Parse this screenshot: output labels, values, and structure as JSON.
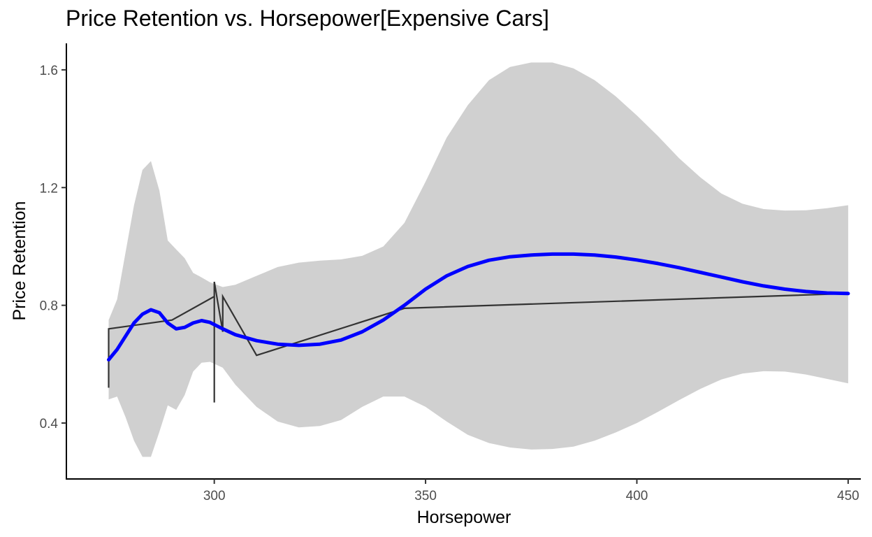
{
  "chart_data": {
    "type": "line",
    "title": "Price Retention vs. Horsepower[Expensive Cars]",
    "xlabel": "Horsepower",
    "ylabel": "Price Retention",
    "xlim": [
      265,
      453
    ],
    "ylim": [
      0.21,
      1.69
    ],
    "xticks": [
      300,
      350,
      400,
      450
    ],
    "yticks": [
      0.4,
      0.8,
      1.2,
      1.6
    ],
    "ytick_labels": [
      "0.4",
      "0.8",
      "1.2",
      "1.6"
    ],
    "grid": false,
    "legend": "none",
    "series": [
      {
        "kind": "raw-line",
        "color": "#333333",
        "points": [
          [
            275,
            0.52
          ],
          [
            275,
            0.72
          ],
          [
            290,
            0.75
          ],
          [
            300,
            0.83
          ],
          [
            300,
            0.47
          ],
          [
            300,
            0.88
          ],
          [
            302,
            0.71
          ],
          [
            302,
            0.83
          ],
          [
            310,
            0.63
          ],
          [
            345,
            0.79
          ],
          [
            450,
            0.84
          ]
        ]
      },
      {
        "kind": "smooth",
        "color": "#0000ff",
        "points": [
          [
            275,
            0.615
          ],
          [
            277,
            0.65
          ],
          [
            279,
            0.695
          ],
          [
            281,
            0.74
          ],
          [
            283,
            0.77
          ],
          [
            285,
            0.785
          ],
          [
            287,
            0.775
          ],
          [
            289,
            0.74
          ],
          [
            291,
            0.72
          ],
          [
            293,
            0.725
          ],
          [
            295,
            0.74
          ],
          [
            297,
            0.748
          ],
          [
            299,
            0.742
          ],
          [
            302,
            0.72
          ],
          [
            305,
            0.7
          ],
          [
            310,
            0.68
          ],
          [
            315,
            0.668
          ],
          [
            320,
            0.664
          ],
          [
            325,
            0.668
          ],
          [
            330,
            0.682
          ],
          [
            335,
            0.71
          ],
          [
            340,
            0.75
          ],
          [
            345,
            0.8
          ],
          [
            350,
            0.855
          ],
          [
            355,
            0.9
          ],
          [
            360,
            0.932
          ],
          [
            365,
            0.953
          ],
          [
            370,
            0.965
          ],
          [
            375,
            0.971
          ],
          [
            380,
            0.974
          ],
          [
            385,
            0.974
          ],
          [
            390,
            0.971
          ],
          [
            395,
            0.964
          ],
          [
            400,
            0.954
          ],
          [
            405,
            0.942
          ],
          [
            410,
            0.928
          ],
          [
            415,
            0.912
          ],
          [
            420,
            0.896
          ],
          [
            425,
            0.88
          ],
          [
            430,
            0.866
          ],
          [
            435,
            0.855
          ],
          [
            440,
            0.847
          ],
          [
            445,
            0.842
          ],
          [
            450,
            0.84
          ]
        ]
      },
      {
        "kind": "confidence-band",
        "color": "#d0d0d0",
        "upper": [
          [
            275,
            0.75
          ],
          [
            277,
            0.82
          ],
          [
            279,
            0.98
          ],
          [
            281,
            1.14
          ],
          [
            283,
            1.26
          ],
          [
            285,
            1.29
          ],
          [
            287,
            1.19
          ],
          [
            289,
            1.02
          ],
          [
            291,
            0.99
          ],
          [
            293,
            0.96
          ],
          [
            295,
            0.91
          ],
          [
            297,
            0.895
          ],
          [
            299,
            0.878
          ],
          [
            302,
            0.862
          ],
          [
            305,
            0.87
          ],
          [
            310,
            0.9
          ],
          [
            315,
            0.93
          ],
          [
            320,
            0.945
          ],
          [
            325,
            0.952
          ],
          [
            330,
            0.956
          ],
          [
            335,
            0.968
          ],
          [
            340,
            1.0
          ],
          [
            345,
            1.08
          ],
          [
            350,
            1.22
          ],
          [
            355,
            1.37
          ],
          [
            360,
            1.48
          ],
          [
            365,
            1.565
          ],
          [
            370,
            1.61
          ],
          [
            375,
            1.625
          ],
          [
            380,
            1.625
          ],
          [
            385,
            1.605
          ],
          [
            390,
            1.565
          ],
          [
            395,
            1.51
          ],
          [
            400,
            1.445
          ],
          [
            405,
            1.375
          ],
          [
            410,
            1.3
          ],
          [
            415,
            1.235
          ],
          [
            420,
            1.18
          ],
          [
            425,
            1.145
          ],
          [
            430,
            1.127
          ],
          [
            435,
            1.122
          ],
          [
            440,
            1.123
          ],
          [
            445,
            1.13
          ],
          [
            450,
            1.14
          ]
        ],
        "lower": [
          [
            275,
            0.48
          ],
          [
            277,
            0.49
          ],
          [
            279,
            0.42
          ],
          [
            281,
            0.34
          ],
          [
            283,
            0.285
          ],
          [
            285,
            0.285
          ],
          [
            287,
            0.37
          ],
          [
            289,
            0.46
          ],
          [
            291,
            0.445
          ],
          [
            293,
            0.495
          ],
          [
            295,
            0.575
          ],
          [
            297,
            0.605
          ],
          [
            299,
            0.608
          ],
          [
            302,
            0.588
          ],
          [
            305,
            0.53
          ],
          [
            310,
            0.455
          ],
          [
            315,
            0.405
          ],
          [
            320,
            0.385
          ],
          [
            325,
            0.39
          ],
          [
            330,
            0.41
          ],
          [
            335,
            0.455
          ],
          [
            340,
            0.49
          ],
          [
            345,
            0.49
          ],
          [
            350,
            0.455
          ],
          [
            355,
            0.405
          ],
          [
            360,
            0.36
          ],
          [
            365,
            0.332
          ],
          [
            370,
            0.317
          ],
          [
            375,
            0.31
          ],
          [
            380,
            0.312
          ],
          [
            385,
            0.32
          ],
          [
            390,
            0.34
          ],
          [
            395,
            0.368
          ],
          [
            400,
            0.4
          ],
          [
            405,
            0.438
          ],
          [
            410,
            0.478
          ],
          [
            415,
            0.516
          ],
          [
            420,
            0.548
          ],
          [
            425,
            0.568
          ],
          [
            430,
            0.576
          ],
          [
            435,
            0.575
          ],
          [
            440,
            0.565
          ],
          [
            445,
            0.55
          ],
          [
            450,
            0.535
          ]
        ]
      }
    ]
  }
}
